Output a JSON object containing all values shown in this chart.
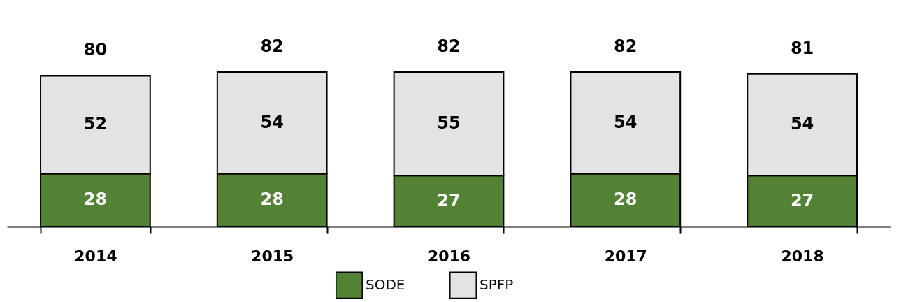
{
  "chart_data": {
    "type": "bar",
    "stacked": true,
    "data_labels": true,
    "legend": "bottom",
    "grid": false,
    "categories": [
      "2014",
      "2015",
      "2016",
      "2017",
      "2018"
    ],
    "series": [
      {
        "name": "SODE",
        "color": "#548235",
        "values": [
          28,
          28,
          27,
          28,
          27
        ]
      },
      {
        "name": "SPFP",
        "color": "#e2e4e3",
        "values": [
          52,
          54,
          55,
          54,
          54
        ]
      }
    ],
    "totals": [
      "80",
      "82",
      "82",
      "82",
      "81"
    ]
  }
}
